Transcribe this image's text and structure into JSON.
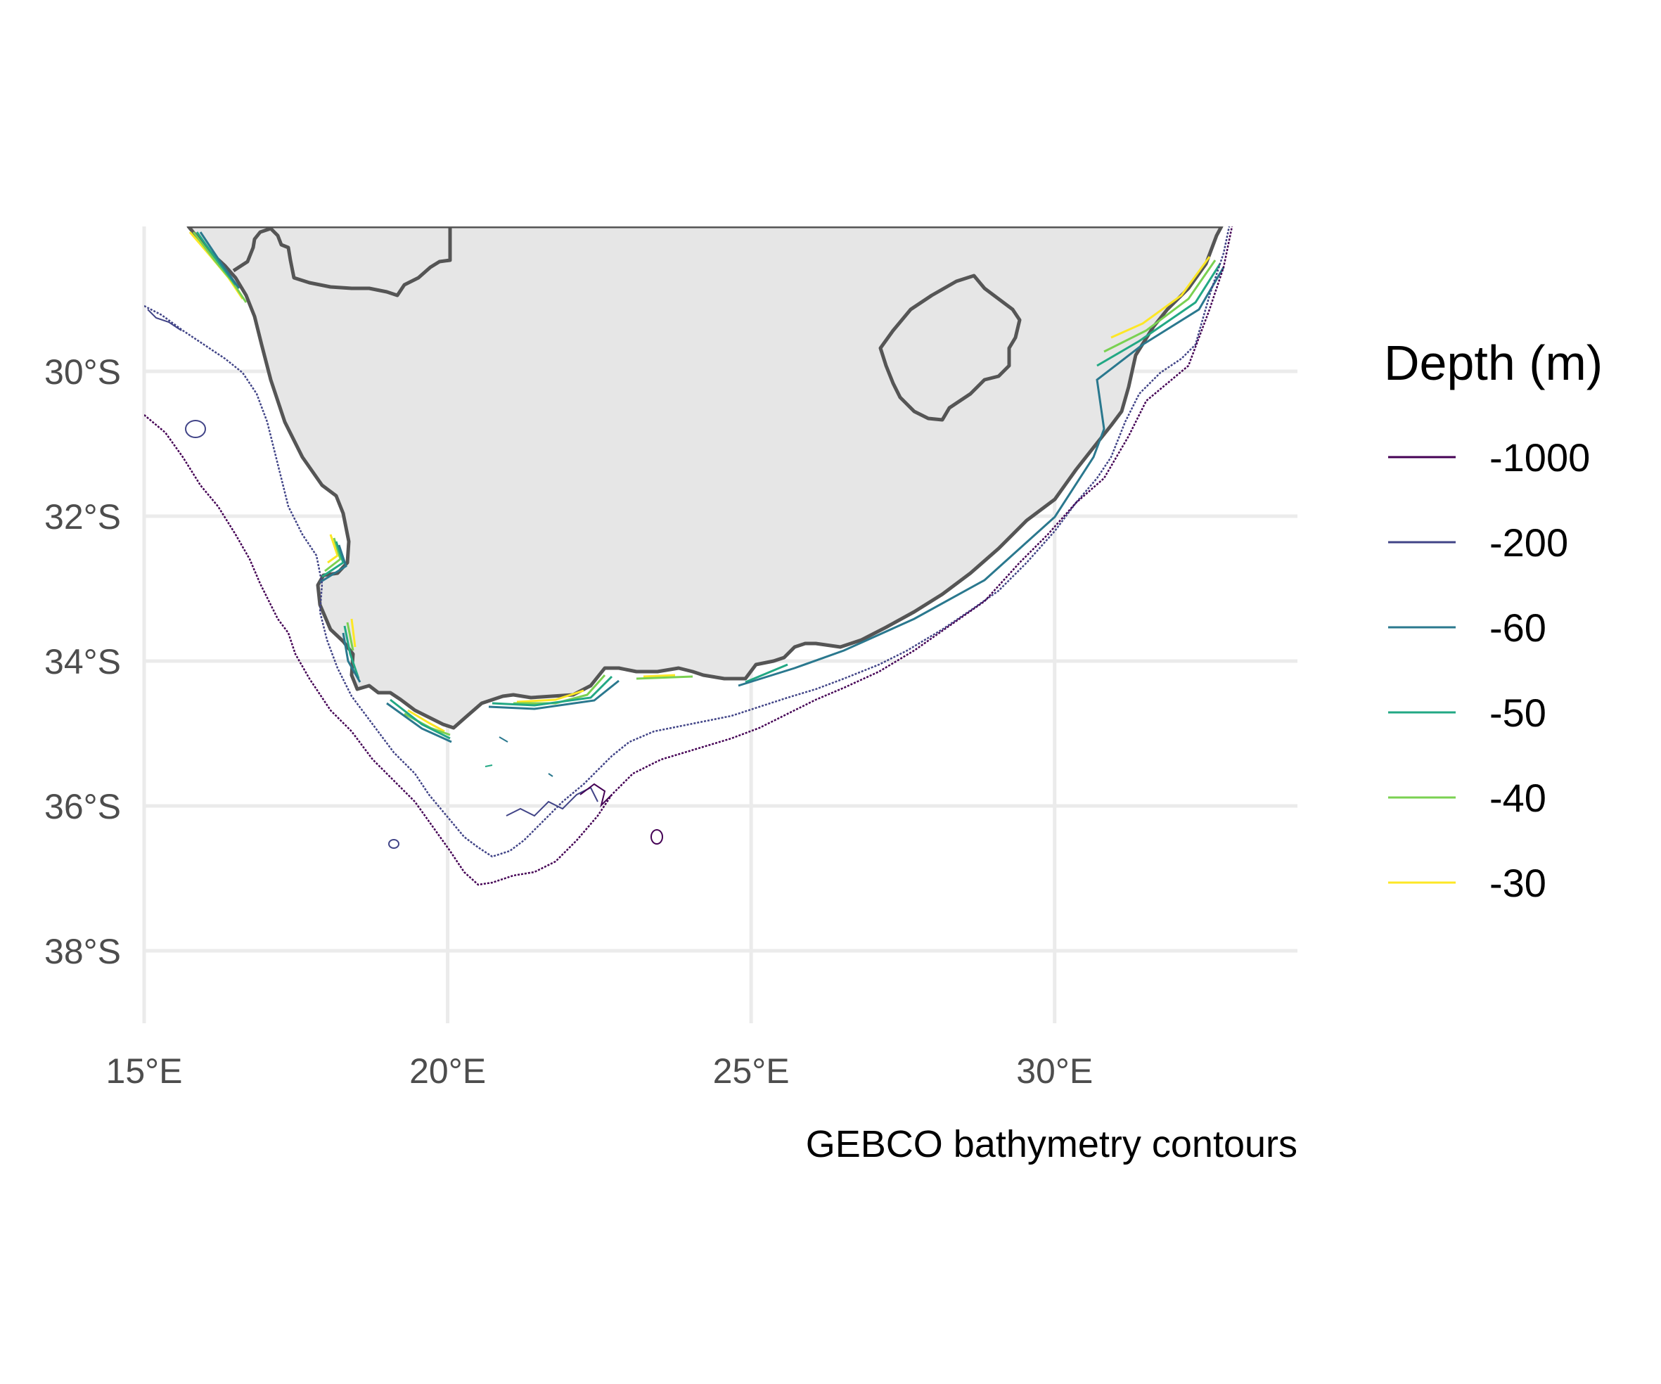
{
  "map": {
    "caption": "GEBCO bathymetry contours",
    "x_ticks": [
      "15°E",
      "20°E",
      "25°E",
      "30°E"
    ],
    "y_ticks": [
      "30°S",
      "32°S",
      "34°S",
      "36°S",
      "38°S"
    ],
    "x_tick_values": [
      15,
      20,
      25,
      30
    ],
    "y_tick_values": [
      -30,
      -32,
      -34,
      -36,
      -38
    ],
    "lon_range": [
      15,
      34
    ],
    "lat_range": [
      -39,
      -28
    ],
    "land_color": "#e6e6e6",
    "border_color": "#555555",
    "grid_color": "#ebebeb"
  },
  "legend": {
    "title": "Depth (m)",
    "entries": [
      {
        "label": "-1000",
        "depth": -1000,
        "color": "#440154"
      },
      {
        "label": "-200",
        "depth": -200,
        "color": "#414487"
      },
      {
        "label": "-60",
        "depth": -60,
        "color": "#2a788e"
      },
      {
        "label": "-50",
        "depth": -50,
        "color": "#22a884"
      },
      {
        "label": "-40",
        "depth": -40,
        "color": "#7ad151"
      },
      {
        "label": "-30",
        "depth": -30,
        "color": "#fde725"
      }
    ]
  }
}
